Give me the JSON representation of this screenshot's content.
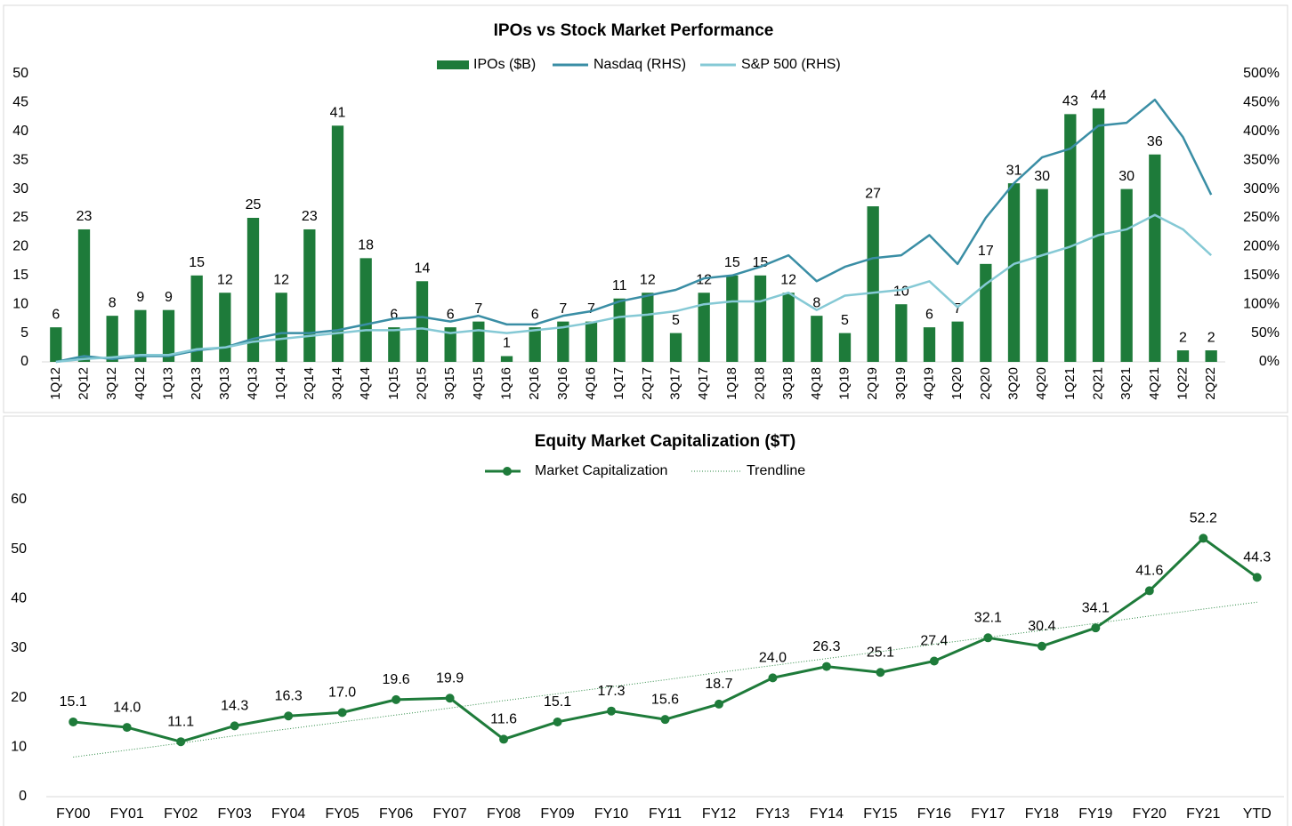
{
  "chart_data": [
    {
      "type": "combo",
      "title": "IPOs vs Stock Market Performance",
      "categories": [
        "1Q12",
        "2Q12",
        "3Q12",
        "4Q12",
        "1Q13",
        "2Q13",
        "3Q13",
        "4Q13",
        "1Q14",
        "2Q14",
        "3Q14",
        "4Q14",
        "1Q15",
        "2Q15",
        "3Q15",
        "4Q15",
        "1Q16",
        "2Q16",
        "3Q16",
        "4Q16",
        "1Q17",
        "2Q17",
        "3Q17",
        "4Q17",
        "1Q18",
        "2Q18",
        "3Q18",
        "4Q18",
        "1Q19",
        "2Q19",
        "3Q19",
        "4Q19",
        "1Q20",
        "2Q20",
        "3Q20",
        "4Q20",
        "1Q21",
        "2Q21",
        "3Q21",
        "4Q21",
        "1Q22",
        "2Q22"
      ],
      "series": [
        {
          "name": "IPOs ($B)",
          "type": "bar",
          "color": "#1e7b3a",
          "label_color": "#2e8b46",
          "values": [
            6,
            23,
            8,
            9,
            9,
            15,
            12,
            25,
            12,
            23,
            41,
            18,
            6,
            14,
            6,
            7,
            1,
            6,
            7,
            7,
            11,
            12,
            5,
            12,
            15,
            15,
            12,
            8,
            5,
            27,
            10,
            6,
            7,
            17,
            31,
            30,
            43,
            44,
            30,
            36,
            2,
            2
          ]
        },
        {
          "name": "Nasdaq (RHS)",
          "type": "line",
          "axis": "y2",
          "color": "#3a8ea5",
          "values": [
            0,
            10,
            5,
            10,
            10,
            20,
            25,
            40,
            50,
            50,
            55,
            65,
            75,
            78,
            70,
            80,
            65,
            65,
            80,
            88,
            105,
            115,
            125,
            145,
            150,
            165,
            185,
            140,
            165,
            180,
            185,
            220,
            170,
            250,
            310,
            355,
            370,
            410,
            415,
            455,
            390,
            290
          ]
        },
        {
          "name": "S&P 500 (RHS)",
          "type": "line",
          "axis": "y2",
          "color": "#85c9d5",
          "values": [
            0,
            5,
            8,
            12,
            12,
            22,
            25,
            35,
            40,
            45,
            50,
            55,
            55,
            58,
            50,
            55,
            50,
            55,
            60,
            68,
            78,
            82,
            88,
            100,
            105,
            105,
            120,
            90,
            115,
            120,
            125,
            140,
            95,
            135,
            170,
            185,
            200,
            220,
            230,
            255,
            230,
            185
          ]
        }
      ],
      "ylim": [
        0,
        50
      ],
      "yticks": [
        0,
        5,
        10,
        15,
        20,
        25,
        30,
        35,
        40,
        45,
        50
      ],
      "y2lim": [
        0,
        500
      ],
      "y2ticks": [
        {
          "value": 0,
          "label": "0%"
        },
        {
          "value": 50,
          "label": "50%"
        },
        {
          "value": 100,
          "label": "100%"
        },
        {
          "value": 150,
          "label": "150%"
        },
        {
          "value": 200,
          "label": "200%"
        },
        {
          "value": 250,
          "label": "250%"
        },
        {
          "value": 300,
          "label": "300%"
        },
        {
          "value": 350,
          "label": "350%"
        },
        {
          "value": 400,
          "label": "400%"
        },
        {
          "value": 450,
          "label": "450%"
        },
        {
          "value": 500,
          "label": "500%"
        }
      ],
      "grid": false,
      "legend": "top"
    },
    {
      "type": "line",
      "title": "Equity Market Capitalization ($T)",
      "categories": [
        "FY00",
        "FY01",
        "FY02",
        "FY03",
        "FY04",
        "FY05",
        "FY06",
        "FY07",
        "FY08",
        "FY09",
        "FY10",
        "FY11",
        "FY12",
        "FY13",
        "FY14",
        "FY15",
        "FY16",
        "FY17",
        "FY18",
        "FY19",
        "FY20",
        "FY21",
        "YTD"
      ],
      "series": [
        {
          "name": "Market Capitalization",
          "type": "line",
          "color": "#1e7b3a",
          "label_color": "#2e8b46",
          "markers": true,
          "labels": true,
          "values": [
            15.1,
            14.0,
            11.1,
            14.3,
            16.3,
            17.0,
            19.6,
            19.9,
            11.6,
            15.1,
            17.3,
            15.6,
            18.7,
            24.0,
            26.3,
            25.1,
            27.4,
            32.1,
            30.4,
            34.1,
            41.6,
            52.2,
            44.3
          ],
          "value_labels": [
            "15.1",
            "14.0",
            "11.1",
            "14.3",
            "16.3",
            "17.0",
            "19.6",
            "19.9",
            "11.6",
            "15.1",
            "17.3",
            "15.6",
            "18.7",
            "24.0",
            "26.3",
            "25.1",
            "27.4",
            "32.1",
            "30.4",
            "34.1",
            "41.6",
            "52.2",
            "44.3"
          ]
        },
        {
          "name": "Trendline",
          "type": "line",
          "color": "#2e8b46",
          "style": "dotted",
          "markers": false,
          "labels": false,
          "values": [
            8.0,
            9.4,
            10.8,
            12.3,
            13.7,
            15.1,
            16.5,
            17.9,
            19.4,
            20.8,
            22.2,
            23.6,
            25.1,
            26.5,
            27.9,
            29.3,
            30.8,
            32.2,
            33.6,
            35.0,
            36.5,
            37.9,
            39.3
          ]
        }
      ],
      "ylim": [
        0,
        60
      ],
      "yticks": [
        0,
        10,
        20,
        30,
        40,
        50,
        60
      ],
      "grid": false,
      "legend": "top"
    }
  ]
}
